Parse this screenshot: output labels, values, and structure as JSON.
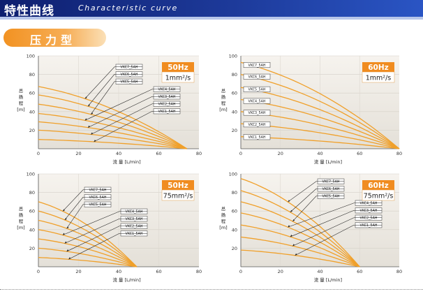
{
  "header": {
    "title": "特性曲线",
    "subtitle": "Characteristic curve"
  },
  "section": {
    "title": "压力型"
  },
  "chart_data": [
    {
      "type": "line",
      "xlabel": "流 量 [L/min]",
      "ylabel": [
        "总",
        "扬",
        "程",
        "[m]"
      ],
      "xlim": [
        0,
        80
      ],
      "ylim": [
        0,
        100
      ],
      "xticks": [
        "0",
        "20",
        "40",
        "60",
        "80"
      ],
      "yticks": [
        "20",
        "40",
        "60",
        "80",
        "100"
      ],
      "hz": "50Hz",
      "viscosity": "1mm²/s",
      "series": [
        {
          "name": "VKC7_5AH",
          "x": [
            0,
            74
          ],
          "y": [
            67,
            0
          ]
        },
        {
          "name": "VKC6_5AH",
          "x": [
            0,
            74
          ],
          "y": [
            58,
            0
          ]
        },
        {
          "name": "VKC5_5AH",
          "x": [
            0,
            74
          ],
          "y": [
            48,
            0
          ]
        },
        {
          "name": "VKC4_5AH",
          "x": [
            0,
            74
          ],
          "y": [
            38,
            0
          ]
        },
        {
          "name": "VKC3_5AH",
          "x": [
            0,
            74
          ],
          "y": [
            29,
            0
          ]
        },
        {
          "name": "VKC2_5AH",
          "x": [
            0,
            74
          ],
          "y": [
            20,
            0
          ]
        },
        {
          "name": "VKC1_5AH",
          "x": [
            0,
            74
          ],
          "y": [
            10,
            0
          ]
        }
      ]
    },
    {
      "type": "line",
      "xlabel": "流 量 [L/min]",
      "ylabel": [
        "总",
        "扬",
        "程",
        "[m]"
      ],
      "xlim": [
        0,
        80
      ],
      "ylim": [
        0,
        100
      ],
      "xticks": [
        "0",
        "20",
        "40",
        "60",
        "80"
      ],
      "yticks": [
        "20",
        "40",
        "60",
        "80",
        "100"
      ],
      "hz": "60Hz",
      "viscosity": "1mm²/s",
      "series": [
        {
          "name": "VKC7_5AH",
          "x": [
            0,
            80
          ],
          "y": [
            93,
            0
          ]
        },
        {
          "name": "VKC6_5AH",
          "x": [
            0,
            80
          ],
          "y": [
            80,
            0
          ]
        },
        {
          "name": "VKC5_5AH",
          "x": [
            0,
            80
          ],
          "y": [
            66,
            0
          ]
        },
        {
          "name": "VKC4_5AH",
          "x": [
            0,
            80
          ],
          "y": [
            53,
            0
          ]
        },
        {
          "name": "VKC3_5AH",
          "x": [
            0,
            80
          ],
          "y": [
            40,
            0
          ]
        },
        {
          "name": "VKC2_5AH",
          "x": [
            0,
            80
          ],
          "y": [
            27,
            0
          ]
        },
        {
          "name": "VKC1_5AH",
          "x": [
            0,
            80
          ],
          "y": [
            13,
            0
          ]
        }
      ]
    },
    {
      "type": "line",
      "xlabel": "流 量 [L/min]",
      "ylabel": [
        "总",
        "扬",
        "程",
        "[m]"
      ],
      "xlim": [
        0,
        80
      ],
      "ylim": [
        0,
        100
      ],
      "xticks": [
        "0",
        "20",
        "40",
        "60",
        "80"
      ],
      "yticks": [
        "20",
        "40",
        "60",
        "80",
        "100"
      ],
      "hz": "50Hz",
      "viscosity": "75mm²/s",
      "series": [
        {
          "name": "VKC7_5AH",
          "x": [
            0,
            49
          ],
          "y": [
            70,
            0
          ]
        },
        {
          "name": "VKC6_5AH",
          "x": [
            0,
            49
          ],
          "y": [
            60,
            0
          ]
        },
        {
          "name": "VKC5_5AH",
          "x": [
            0,
            49
          ],
          "y": [
            50,
            0
          ]
        },
        {
          "name": "VKC4_5AH",
          "x": [
            0,
            49
          ],
          "y": [
            40,
            0
          ]
        },
        {
          "name": "VKC3_5AH",
          "x": [
            0,
            49
          ],
          "y": [
            30,
            0
          ]
        },
        {
          "name": "VKC2_5AH",
          "x": [
            0,
            49
          ],
          "y": [
            20,
            0
          ]
        },
        {
          "name": "VKC1_5AH",
          "x": [
            0,
            49
          ],
          "y": [
            10,
            0
          ]
        }
      ]
    },
    {
      "type": "line",
      "xlabel": "流 量 [L/min]",
      "ylabel": [
        "总",
        "扬",
        "程",
        "[m]"
      ],
      "xlim": [
        0,
        80
      ],
      "ylim": [
        0,
        100
      ],
      "xticks": [
        "0",
        "20",
        "40",
        "60",
        "80"
      ],
      "yticks": [
        "20",
        "40",
        "60",
        "80",
        "100"
      ],
      "hz": "60Hz",
      "viscosity": "75mm²/s",
      "series": [
        {
          "name": "VKC7_5AH",
          "x": [
            0,
            60
          ],
          "y": [
            95,
            0
          ]
        },
        {
          "name": "VKC6_5AH",
          "x": [
            0,
            60
          ],
          "y": [
            82,
            0
          ]
        },
        {
          "name": "VKC5_5AH",
          "x": [
            0,
            60
          ],
          "y": [
            70,
            0
          ]
        },
        {
          "name": "VKC4_5AH",
          "x": [
            0,
            60
          ],
          "y": [
            58,
            0
          ]
        },
        {
          "name": "VKC3_5AH",
          "x": [
            0,
            60
          ],
          "y": [
            45,
            0
          ]
        },
        {
          "name": "VKC2_5AH",
          "x": [
            0,
            60
          ],
          "y": [
            32,
            0
          ]
        },
        {
          "name": "VKC1_5AH",
          "x": [
            0,
            60
          ],
          "y": [
            18,
            0
          ]
        }
      ]
    }
  ],
  "colors": {
    "curve": "#f0a02a",
    "panel_top": "#f6f3ee",
    "panel_bottom": "#e6e2da",
    "badge": "#f08c20",
    "axis": "#555555"
  }
}
